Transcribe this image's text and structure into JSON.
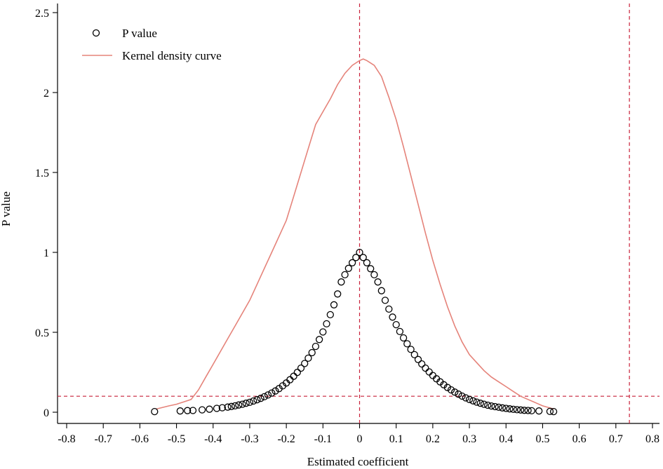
{
  "chart_data": {
    "type": "scatter",
    "xlabel": "Estimated coefficient",
    "ylabel": "P value",
    "xlim": [
      -0.8,
      0.8
    ],
    "ylim": [
      0,
      2.5
    ],
    "x_ticks": [
      "-0.8",
      "-0.7",
      "-0.6",
      "-0.5",
      "-0.4",
      "-0.3",
      "-0.2",
      "-0.1",
      "0",
      "0.1",
      "0.2",
      "0.3",
      "0.4",
      "0.5",
      "0.6",
      "0.7",
      "0.8"
    ],
    "y_ticks": [
      "0",
      "0.5",
      "1",
      "1.5",
      "2",
      "2.5"
    ],
    "legend": {
      "position": "top-left",
      "entries": [
        "P value",
        "Kernel density curve"
      ]
    },
    "reference_lines": {
      "vertical": [
        0,
        0.737
      ],
      "horizontal": [
        0.1
      ],
      "color": "#c8213a"
    },
    "series": [
      {
        "name": "P value",
        "kind": "scatter",
        "marker": "hollow-circle",
        "color": "#000000",
        "x": [
          -0.56,
          -0.49,
          -0.47,
          -0.455,
          -0.43,
          -0.41,
          -0.39,
          -0.375,
          -0.36,
          -0.35,
          -0.34,
          -0.33,
          -0.32,
          -0.31,
          -0.3,
          -0.29,
          -0.28,
          -0.27,
          -0.26,
          -0.25,
          -0.24,
          -0.23,
          -0.22,
          -0.21,
          -0.2,
          -0.19,
          -0.18,
          -0.17,
          -0.16,
          -0.15,
          -0.14,
          -0.13,
          -0.12,
          -0.11,
          -0.1,
          -0.09,
          -0.08,
          -0.07,
          -0.06,
          -0.05,
          -0.04,
          -0.03,
          -0.02,
          -0.01,
          0,
          0.01,
          0.02,
          0.03,
          0.04,
          0.05,
          0.06,
          0.07,
          0.08,
          0.09,
          0.1,
          0.11,
          0.12,
          0.13,
          0.14,
          0.15,
          0.16,
          0.17,
          0.18,
          0.19,
          0.2,
          0.21,
          0.22,
          0.23,
          0.24,
          0.25,
          0.26,
          0.27,
          0.28,
          0.29,
          0.3,
          0.31,
          0.32,
          0.33,
          0.34,
          0.35,
          0.36,
          0.37,
          0.38,
          0.39,
          0.4,
          0.41,
          0.42,
          0.43,
          0.44,
          0.45,
          0.46,
          0.47,
          0.49,
          0.52,
          0.53
        ],
        "y": [
          0.004,
          0.008,
          0.01,
          0.011,
          0.015,
          0.019,
          0.024,
          0.028,
          0.032,
          0.036,
          0.04,
          0.045,
          0.05,
          0.056,
          0.062,
          0.07,
          0.078,
          0.087,
          0.097,
          0.108,
          0.12,
          0.133,
          0.148,
          0.165,
          0.183,
          0.203,
          0.225,
          0.249,
          0.276,
          0.305,
          0.338,
          0.373,
          0.412,
          0.455,
          0.502,
          0.553,
          0.61,
          0.672,
          0.74,
          0.815,
          0.86,
          0.9,
          0.935,
          0.968,
          1.0,
          0.968,
          0.935,
          0.898,
          0.86,
          0.815,
          0.76,
          0.7,
          0.645,
          0.595,
          0.548,
          0.505,
          0.465,
          0.428,
          0.393,
          0.36,
          0.33,
          0.302,
          0.276,
          0.252,
          0.23,
          0.209,
          0.19,
          0.172,
          0.155,
          0.14,
          0.126,
          0.113,
          0.101,
          0.09,
          0.08,
          0.071,
          0.063,
          0.056,
          0.05,
          0.044,
          0.039,
          0.035,
          0.031,
          0.027,
          0.024,
          0.021,
          0.018,
          0.016,
          0.014,
          0.012,
          0.011,
          0.009,
          0.008,
          0.005,
          0.004
        ]
      },
      {
        "name": "Kernel density curve",
        "kind": "line",
        "color": "#e5837a",
        "x": [
          -0.555,
          -0.52,
          -0.5,
          -0.48,
          -0.46,
          -0.44,
          -0.42,
          -0.4,
          -0.38,
          -0.36,
          -0.34,
          -0.32,
          -0.3,
          -0.28,
          -0.26,
          -0.24,
          -0.22,
          -0.2,
          -0.18,
          -0.16,
          -0.14,
          -0.12,
          -0.1,
          -0.08,
          -0.06,
          -0.04,
          -0.02,
          0,
          0.01,
          0.02,
          0.04,
          0.06,
          0.08,
          0.1,
          0.12,
          0.14,
          0.16,
          0.18,
          0.2,
          0.22,
          0.24,
          0.26,
          0.28,
          0.3,
          0.32,
          0.34,
          0.36,
          0.38,
          0.4,
          0.42,
          0.44,
          0.46,
          0.48,
          0.5,
          0.53
        ],
        "y": [
          0.02,
          0.04,
          0.05,
          0.065,
          0.08,
          0.14,
          0.22,
          0.3,
          0.38,
          0.46,
          0.54,
          0.62,
          0.7,
          0.8,
          0.9,
          1.0,
          1.1,
          1.2,
          1.35,
          1.5,
          1.65,
          1.8,
          1.88,
          1.96,
          2.05,
          2.12,
          2.17,
          2.2,
          2.21,
          2.2,
          2.17,
          2.1,
          1.97,
          1.83,
          1.66,
          1.48,
          1.3,
          1.12,
          0.95,
          0.8,
          0.66,
          0.54,
          0.44,
          0.36,
          0.31,
          0.26,
          0.22,
          0.19,
          0.16,
          0.13,
          0.1,
          0.08,
          0.06,
          0.04,
          0.02
        ]
      }
    ]
  }
}
